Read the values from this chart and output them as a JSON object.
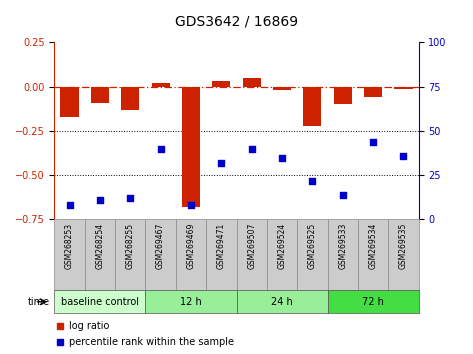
{
  "title": "GDS3642 / 16869",
  "samples": [
    "GSM268253",
    "GSM268254",
    "GSM268255",
    "GSM269467",
    "GSM269469",
    "GSM269471",
    "GSM269507",
    "GSM269524",
    "GSM269525",
    "GSM269533",
    "GSM269534",
    "GSM269535"
  ],
  "log_ratio": [
    -0.17,
    -0.09,
    -0.13,
    0.02,
    -0.68,
    0.03,
    0.05,
    -0.02,
    -0.22,
    -0.1,
    -0.06,
    -0.01
  ],
  "percentile_rank": [
    8,
    11,
    12,
    40,
    8,
    32,
    40,
    35,
    22,
    14,
    44,
    36
  ],
  "bar_color": "#cc2200",
  "dot_color": "#0000cc",
  "ylim_left": [
    -0.75,
    0.25
  ],
  "ylim_right": [
    0,
    100
  ],
  "yticks_left": [
    0.25,
    0,
    -0.25,
    -0.5,
    -0.75
  ],
  "yticks_right": [
    100,
    75,
    50,
    25,
    0
  ],
  "dotted_lines": [
    -0.25,
    -0.5
  ],
  "group_colors": [
    "#ccffcc",
    "#99ee99",
    "#99ee99",
    "#44dd44"
  ],
  "groups": [
    {
      "label": "baseline control",
      "start": 0,
      "end": 3
    },
    {
      "label": "12 h",
      "start": 3,
      "end": 6
    },
    {
      "label": "24 h",
      "start": 6,
      "end": 9
    },
    {
      "label": "72 h",
      "start": 9,
      "end": 12
    }
  ],
  "time_label": "time",
  "legend_log_ratio": "log ratio",
  "legend_percentile": "percentile rank within the sample",
  "bar_color_legend": "#cc2200",
  "dot_color_legend": "#0000cc",
  "tick_label_color_left": "#cc2200",
  "tick_label_color_right": "#0000cc",
  "sample_box_color": "#cccccc",
  "sample_box_edge": "#888888"
}
